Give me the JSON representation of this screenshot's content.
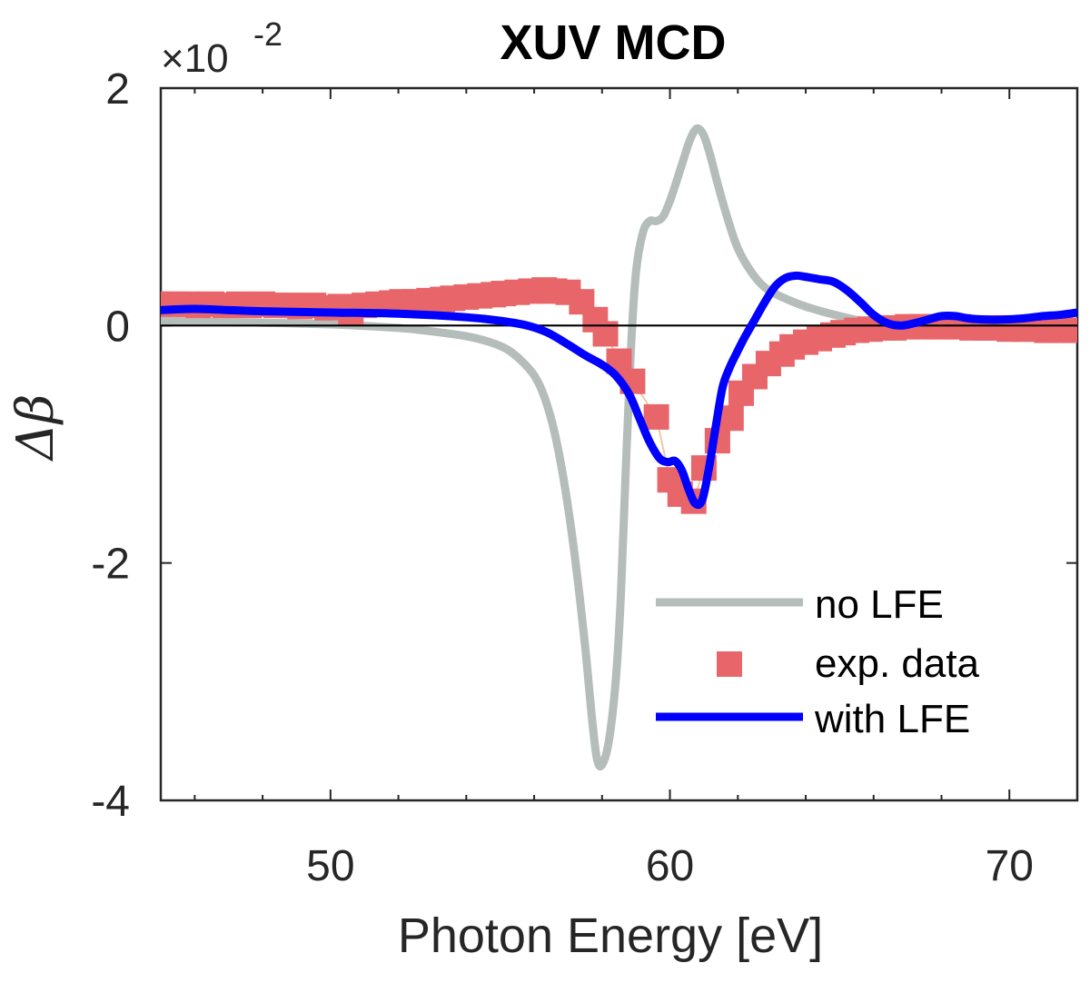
{
  "chart_data": {
    "type": "line",
    "title": "XUV MCD",
    "xlabel": "Photon Energy [eV]",
    "ylabel": "Δβ",
    "y_multiplier": "×10",
    "y_multiplier_exponent": "-2",
    "xlim": [
      45,
      72
    ],
    "ylim": [
      -4,
      2
    ],
    "xticks": [
      50,
      60,
      70
    ],
    "xtick_labels": [
      "50",
      "60",
      "70"
    ],
    "x_minor_step": 2,
    "yticks": [
      2,
      0,
      -2,
      -4
    ],
    "ytick_labels": [
      "2",
      "0",
      "-2",
      "-4"
    ],
    "grid": false,
    "zero_line": true,
    "legend_position": "bottom-right",
    "series": [
      {
        "name": "no LFE",
        "style": "line",
        "color": "#b5bdbb",
        "x": [
          45,
          47,
          50,
          52,
          53,
          54,
          54.7,
          55.2,
          55.6,
          56.0,
          56.3,
          56.6,
          56.9,
          57.2,
          57.5,
          57.7,
          57.85,
          58.0,
          58.2,
          58.4,
          58.55,
          58.7,
          58.85,
          59.0,
          59.2,
          59.4,
          59.6,
          59.8,
          60.0,
          60.2,
          60.4,
          60.6,
          60.8,
          61.0,
          61.2,
          61.4,
          61.7,
          62.0,
          62.4,
          62.8,
          63.3,
          64.0,
          65.0,
          66.0,
          67.0
        ],
        "y": [
          0.04,
          0.03,
          0.01,
          -0.02,
          -0.05,
          -0.09,
          -0.14,
          -0.2,
          -0.29,
          -0.42,
          -0.6,
          -0.9,
          -1.35,
          -1.95,
          -2.7,
          -3.3,
          -3.65,
          -3.7,
          -3.5,
          -3.0,
          -2.3,
          -1.2,
          -0.2,
          0.45,
          0.78,
          0.88,
          0.88,
          0.92,
          1.05,
          1.22,
          1.4,
          1.57,
          1.66,
          1.6,
          1.42,
          1.2,
          0.9,
          0.65,
          0.45,
          0.32,
          0.24,
          0.16,
          0.08,
          0.02,
          0.0
        ]
      },
      {
        "name": "exp. data",
        "style": "square-marker",
        "color": "#e8666a",
        "connector_color": "#f0c8a8",
        "x": [
          45.0,
          45.4,
          45.8,
          46.1,
          46.5,
          46.9,
          47.3,
          47.6,
          48.0,
          48.4,
          48.8,
          49.1,
          49.5,
          49.9,
          50.3,
          50.6,
          51.0,
          51.4,
          51.8,
          52.1,
          52.5,
          52.9,
          53.3,
          53.6,
          54.0,
          54.4,
          54.8,
          55.1,
          55.5,
          55.9,
          56.3,
          56.6,
          57.0,
          57.4,
          57.8,
          58.1,
          58.5,
          58.9,
          59.6,
          60.0,
          60.3,
          60.7,
          61.0,
          61.4,
          61.8,
          62.1,
          62.5,
          62.9,
          63.3,
          63.6,
          64.0,
          64.4,
          64.8,
          65.1,
          65.5,
          65.9,
          66.3,
          66.6,
          67.0,
          67.4,
          67.8,
          68.1,
          68.5,
          68.9,
          69.3,
          69.6,
          70.0,
          70.4,
          70.8,
          71.1,
          71.5,
          71.9
        ],
        "y": [
          0.18,
          0.18,
          0.18,
          0.17,
          0.18,
          0.17,
          0.18,
          0.17,
          0.18,
          0.17,
          0.17,
          0.16,
          0.17,
          0.15,
          0.16,
          0.11,
          0.17,
          0.18,
          0.19,
          0.2,
          0.2,
          0.21,
          0.22,
          0.23,
          0.24,
          0.25,
          0.26,
          0.27,
          0.28,
          0.29,
          0.3,
          0.29,
          0.28,
          0.2,
          0.05,
          -0.07,
          -0.3,
          -0.47,
          -0.77,
          -1.3,
          -1.42,
          -1.48,
          -1.2,
          -0.97,
          -0.78,
          -0.57,
          -0.43,
          -0.32,
          -0.24,
          -0.18,
          -0.14,
          -0.11,
          -0.08,
          -0.06,
          -0.04,
          -0.03,
          -0.02,
          -0.02,
          -0.01,
          -0.01,
          -0.01,
          -0.01,
          -0.01,
          -0.02,
          -0.02,
          -0.02,
          -0.03,
          -0.03,
          -0.03,
          -0.04,
          -0.04,
          -0.04
        ]
      },
      {
        "name": "with LFE",
        "style": "line",
        "color": "#0000ff",
        "x": [
          45,
          46,
          47,
          48,
          50,
          52,
          54,
          55,
          55.8,
          56.4,
          57.0,
          57.5,
          58.0,
          58.4,
          58.8,
          59.1,
          59.4,
          59.7,
          59.95,
          60.15,
          60.35,
          60.55,
          60.75,
          60.95,
          61.15,
          61.35,
          61.55,
          61.75,
          61.95,
          62.2,
          62.5,
          62.8,
          63.1,
          63.4,
          63.7,
          64.0,
          64.4,
          64.8,
          65.2,
          65.6,
          66.0,
          66.4,
          66.8,
          67.2,
          67.6,
          68.0,
          68.4,
          68.8,
          69.3,
          69.8,
          70.4,
          71.0,
          71.5,
          72.0
        ],
        "y": [
          0.13,
          0.14,
          0.13,
          0.12,
          0.11,
          0.1,
          0.07,
          0.04,
          0.0,
          -0.06,
          -0.16,
          -0.25,
          -0.33,
          -0.42,
          -0.58,
          -0.78,
          -0.98,
          -1.12,
          -1.15,
          -1.14,
          -1.22,
          -1.38,
          -1.5,
          -1.47,
          -1.2,
          -0.85,
          -0.52,
          -0.36,
          -0.24,
          -0.1,
          0.05,
          0.2,
          0.33,
          0.4,
          0.42,
          0.41,
          0.39,
          0.37,
          0.3,
          0.2,
          0.09,
          0.02,
          0.0,
          0.02,
          0.05,
          0.08,
          0.08,
          0.06,
          0.05,
          0.05,
          0.06,
          0.08,
          0.09,
          0.11
        ]
      }
    ]
  }
}
